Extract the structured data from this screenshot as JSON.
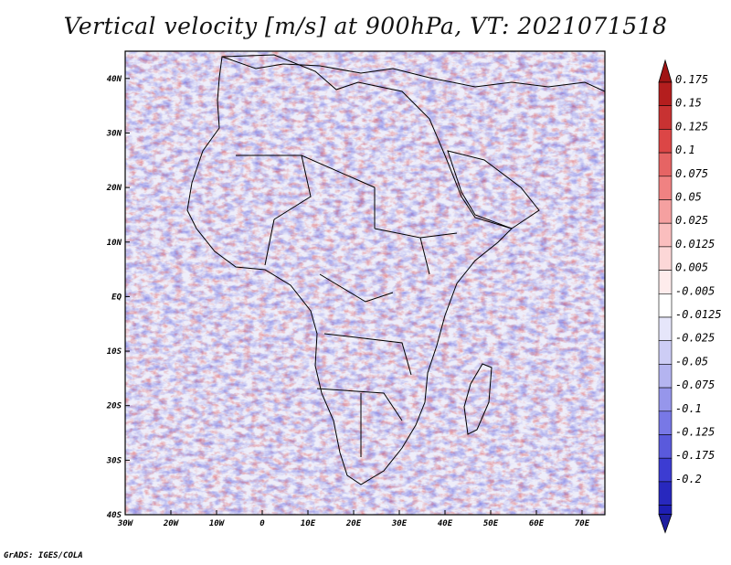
{
  "title": "Vertical velocity [m/s] at 900hPa, VT: 2021071518",
  "credit": "GrADS: IGES/COLA",
  "map": {
    "lon_range": [
      -30,
      75
    ],
    "lat_range": [
      -40,
      45
    ],
    "lon_ticks": [
      {
        "value": -30,
        "label": "30W"
      },
      {
        "value": -20,
        "label": "20W"
      },
      {
        "value": -10,
        "label": "10W"
      },
      {
        "value": 0,
        "label": "0"
      },
      {
        "value": 10,
        "label": "10E"
      },
      {
        "value": 20,
        "label": "20E"
      },
      {
        "value": 30,
        "label": "30E"
      },
      {
        "value": 40,
        "label": "40E"
      },
      {
        "value": 50,
        "label": "50E"
      },
      {
        "value": 60,
        "label": "60E"
      },
      {
        "value": 70,
        "label": "70E"
      }
    ],
    "lat_ticks": [
      {
        "value": 40,
        "label": "40N"
      },
      {
        "value": 30,
        "label": "30N"
      },
      {
        "value": 20,
        "label": "20N"
      },
      {
        "value": 10,
        "label": "10N"
      },
      {
        "value": 0,
        "label": "EQ"
      },
      {
        "value": -10,
        "label": "10S"
      },
      {
        "value": -20,
        "label": "20S"
      },
      {
        "value": -30,
        "label": "30S"
      },
      {
        "value": -40,
        "label": "40S"
      }
    ]
  },
  "colorbar": {
    "levels": [
      {
        "label": "0.175",
        "color": "#b41e1e"
      },
      {
        "label": "0.15",
        "color": "#c83232"
      },
      {
        "label": "0.125",
        "color": "#dc4646"
      },
      {
        "label": "0.1",
        "color": "#e66464"
      },
      {
        "label": "0.075",
        "color": "#f08282"
      },
      {
        "label": "0.05",
        "color": "#f5a0a0"
      },
      {
        "label": "0.025",
        "color": "#fabebe"
      },
      {
        "label": "0.0125",
        "color": "#fcd7d7"
      },
      {
        "label": "0.005",
        "color": "#feecec"
      },
      {
        "label": "-0.005",
        "color": "#ffffff"
      },
      {
        "label": "-0.0125",
        "color": "#e6e6fa"
      },
      {
        "label": "-0.025",
        "color": "#cdcdf5"
      },
      {
        "label": "-0.05",
        "color": "#b4b4f0"
      },
      {
        "label": "-0.075",
        "color": "#9696eb"
      },
      {
        "label": "-0.1",
        "color": "#7878e6"
      },
      {
        "label": "-0.125",
        "color": "#5a5adc"
      },
      {
        "label": "-0.175",
        "color": "#3c3cd2"
      },
      {
        "label": "-0.2",
        "color": "#2828be"
      }
    ],
    "top_arrow_color": "#a01414",
    "bottom_arrow_color": "#1e1ea0",
    "extra_bottom_color": "#1e1eb4"
  }
}
